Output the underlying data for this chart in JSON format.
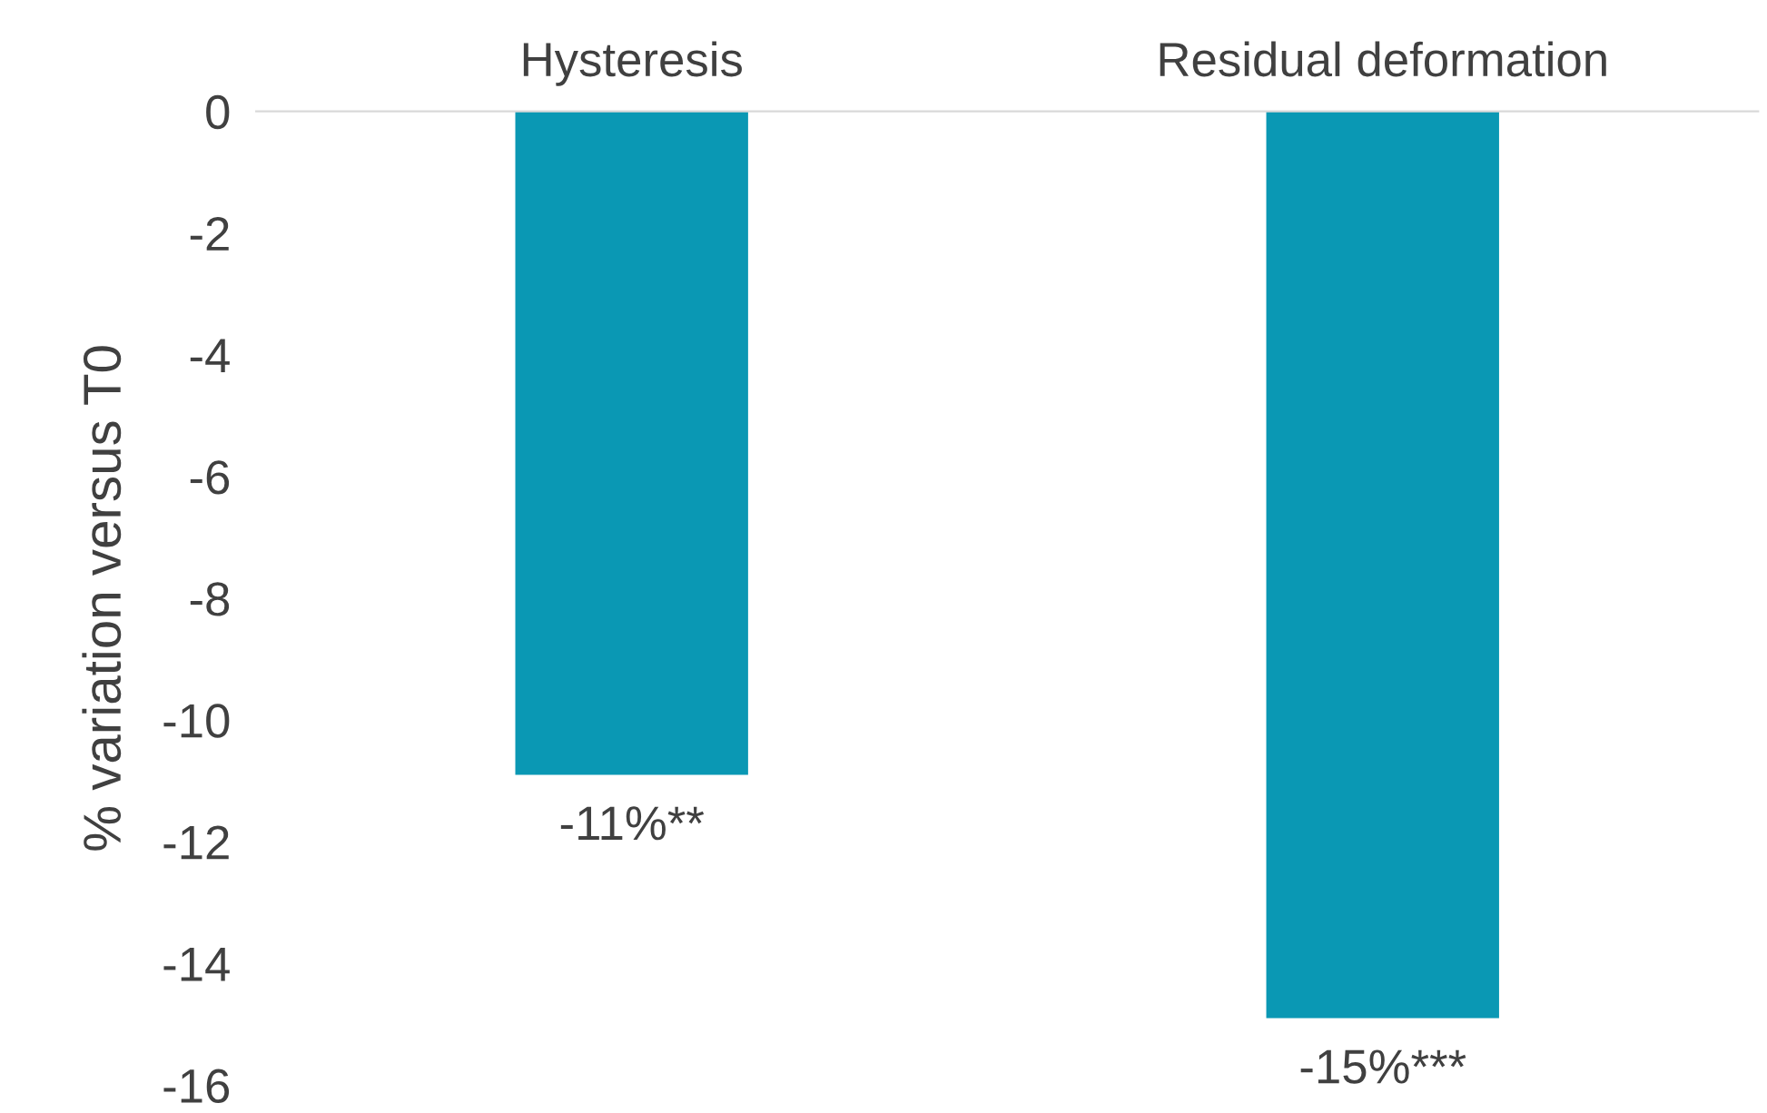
{
  "chart_data": {
    "type": "bar",
    "ylabel": "% variation versus T0",
    "categories": [
      "Hysteresis",
      "Residual deformation"
    ],
    "values": [
      -10.9,
      -14.9
    ],
    "value_labels": [
      "-11%**",
      "-15%***"
    ],
    "color": "#0a98b4",
    "ylim": [
      -16,
      0
    ],
    "yticks": [
      0,
      -2,
      -4,
      -6,
      -8,
      -10,
      -12,
      -14,
      -16
    ],
    "grid": false,
    "legend": false
  }
}
